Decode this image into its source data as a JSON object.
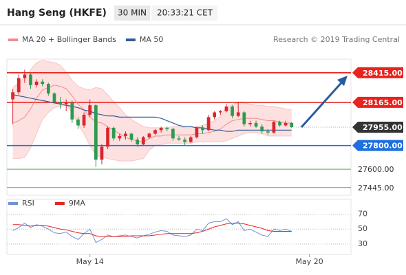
{
  "chart_data": {
    "type": "candlestick",
    "title": "Hang Seng (HKFE)",
    "timeframe": "30 MIN",
    "time": "20:33:21 CET",
    "source": "Research © 2019 Trading Central",
    "xlim": [
      -1,
      57
    ],
    "xticks": [
      {
        "value": 13,
        "label": "May 14"
      },
      {
        "value": 50,
        "label": "May 20"
      }
    ],
    "ylim": [
      27380,
      28530
    ],
    "up_color": "#d9262c",
    "down_color": "#2e9a50",
    "open": [
      28190,
      28250,
      28370,
      28400,
      28310,
      28340,
      28320,
      28240,
      28170,
      28150,
      28160,
      28020,
      27970,
      28060,
      28140,
      27680,
      27790,
      27950,
      27860,
      27880,
      27900,
      27850,
      27810,
      27870,
      27900,
      27930,
      27950,
      27940,
      27860,
      27850,
      27830,
      27870,
      27950,
      27930,
      28040,
      28080,
      28090,
      28130,
      28050,
      28080,
      27980,
      27990,
      27960,
      27920,
      27910,
      28000,
      27970,
      27990
    ],
    "high": [
      28280,
      28400,
      28440,
      28410,
      28360,
      28360,
      28330,
      28250,
      28210,
      28190,
      28180,
      28040,
      28080,
      28190,
      28150,
      27810,
      27960,
      27960,
      27900,
      27920,
      27910,
      27870,
      27880,
      27910,
      27940,
      27960,
      27960,
      27950,
      27880,
      27870,
      27880,
      27960,
      27970,
      28060,
      28090,
      28100,
      28150,
      28140,
      28170,
      28090,
      28010,
      28010,
      27980,
      27940,
      28010,
      28010,
      28010,
      28000
    ],
    "low": [
      27980,
      28230,
      28330,
      28280,
      28290,
      28300,
      28220,
      28150,
      28110,
      28090,
      27990,
      27940,
      27950,
      28040,
      27620,
      27640,
      27770,
      27840,
      27840,
      27850,
      27830,
      27790,
      27800,
      27860,
      27890,
      27910,
      27920,
      27840,
      27840,
      27800,
      27820,
      27860,
      27900,
      27920,
      28020,
      28060,
      28080,
      28030,
      28040,
      27960,
      27960,
      27950,
      27900,
      27890,
      27900,
      27960,
      27960,
      27950
    ],
    "close": [
      28250,
      28370,
      28400,
      28310,
      28340,
      28320,
      28240,
      28170,
      28150,
      28160,
      28020,
      27970,
      28060,
      28140,
      27680,
      27790,
      27950,
      27860,
      27880,
      27900,
      27850,
      27810,
      27870,
      27900,
      27930,
      27950,
      27940,
      27860,
      27850,
      27830,
      27870,
      27950,
      27930,
      28040,
      28080,
      28090,
      28130,
      28050,
      28080,
      27980,
      27990,
      27960,
      27920,
      27910,
      28000,
      27970,
      27990,
      27955
    ],
    "overlays": [
      {
        "name": "MA 20 + Bollinger Bands",
        "color": "#f08a8a",
        "band_color": "#fde0e0",
        "values": [
          27990,
          28010,
          28040,
          28110,
          28200,
          28270,
          28290,
          28310,
          28300,
          28280,
          28220,
          28150,
          28100,
          28040,
          28000,
          27990,
          27960,
          27930,
          27900,
          27870,
          27850,
          27840,
          27830,
          27860,
          27880,
          27880,
          27890,
          27890,
          27890,
          27890,
          27890,
          27900,
          27900,
          27910,
          27920,
          27940,
          27980,
          28010,
          28020,
          28030,
          28030,
          28030,
          28020,
          28010,
          28010,
          28000,
          27990,
          27990
        ],
        "upper": [
          28290,
          28330,
          28380,
          28440,
          28500,
          28520,
          28510,
          28500,
          28480,
          28420,
          28350,
          28300,
          28280,
          28270,
          28290,
          28280,
          28230,
          28170,
          28120,
          28060,
          28020,
          27990,
          27960,
          27950,
          27950,
          27950,
          27950,
          27960,
          27960,
          27950,
          27950,
          27960,
          27970,
          27990,
          28010,
          28050,
          28120,
          28150,
          28160,
          28160,
          28150,
          28140,
          28140,
          28130,
          28130,
          28120,
          28110,
          28100
        ],
        "lower": [
          27690,
          27690,
          27700,
          27780,
          27900,
          28020,
          28080,
          28120,
          28130,
          28140,
          28080,
          27980,
          27900,
          27800,
          27720,
          27700,
          27690,
          27680,
          27670,
          27670,
          27670,
          27680,
          27690,
          27760,
          27800,
          27810,
          27820,
          27820,
          27820,
          27820,
          27820,
          27830,
          27830,
          27830,
          27830,
          27830,
          27840,
          27860,
          27880,
          27900,
          27910,
          27910,
          27900,
          27880,
          27880,
          27880,
          27880,
          27880
        ]
      },
      {
        "name": "MA 50",
        "color": "#2f5d9a",
        "values": [
          28230,
          28220,
          28210,
          28200,
          28190,
          28180,
          28170,
          28160,
          28150,
          28140,
          28130,
          28120,
          28100,
          28090,
          28070,
          28060,
          28050,
          28050,
          28040,
          28040,
          28040,
          28040,
          28040,
          28040,
          28040,
          28030,
          28010,
          27990,
          27970,
          27960,
          27960,
          27950,
          27950,
          27940,
          27930,
          27930,
          27920,
          27920,
          27930,
          27930,
          27930,
          27930,
          27930,
          27930,
          27930,
          27930,
          27930,
          27930
        ]
      }
    ],
    "levels": [
      {
        "value": 28415,
        "label": "28415.00",
        "color": "#e8221c",
        "boxed": true,
        "dotted": false
      },
      {
        "value": 28165,
        "label": "28165.00",
        "color": "#e8221c",
        "boxed": true,
        "dotted": false
      },
      {
        "value": 27955,
        "label": "27955.00",
        "color": "#333333",
        "boxed": true,
        "dotted": true
      },
      {
        "value": 27800,
        "label": "27800.00",
        "color": "#1f6fe0",
        "boxed": true,
        "dotted": false
      },
      {
        "value": 27600,
        "label": "27600.00",
        "color": "#4caf50",
        "boxed": false,
        "dotted": false
      },
      {
        "value": 27445,
        "label": "27445.00",
        "color": "#4caf50",
        "boxed": false,
        "dotted": false
      }
    ],
    "indicator": {
      "ylim": [
        16,
        90
      ],
      "yticks": [
        30,
        50,
        70
      ],
      "series": [
        {
          "name": "RSI",
          "color": "#6f8fd8",
          "values": [
            48,
            52,
            58,
            52,
            56,
            54,
            50,
            45,
            44,
            46,
            40,
            36,
            44,
            50,
            32,
            36,
            42,
            40,
            41,
            42,
            40,
            38,
            41,
            43,
            46,
            48,
            47,
            42,
            41,
            40,
            42,
            50,
            48,
            58,
            60,
            60,
            64,
            56,
            60,
            48,
            50,
            46,
            42,
            40,
            50,
            48,
            50,
            47
          ]
        },
        {
          "name": "9MA",
          "color": "#e8221c",
          "values": [
            56,
            56,
            55,
            54,
            55,
            55,
            54,
            52,
            50,
            49,
            47,
            45,
            44,
            44,
            41,
            40,
            40,
            40,
            40,
            40,
            41,
            41,
            41,
            41,
            42,
            43,
            44,
            44,
            44,
            44,
            44,
            45,
            47,
            50,
            53,
            55,
            57,
            58,
            58,
            57,
            55,
            53,
            51,
            48,
            47,
            47,
            47,
            47
          ]
        }
      ]
    }
  }
}
